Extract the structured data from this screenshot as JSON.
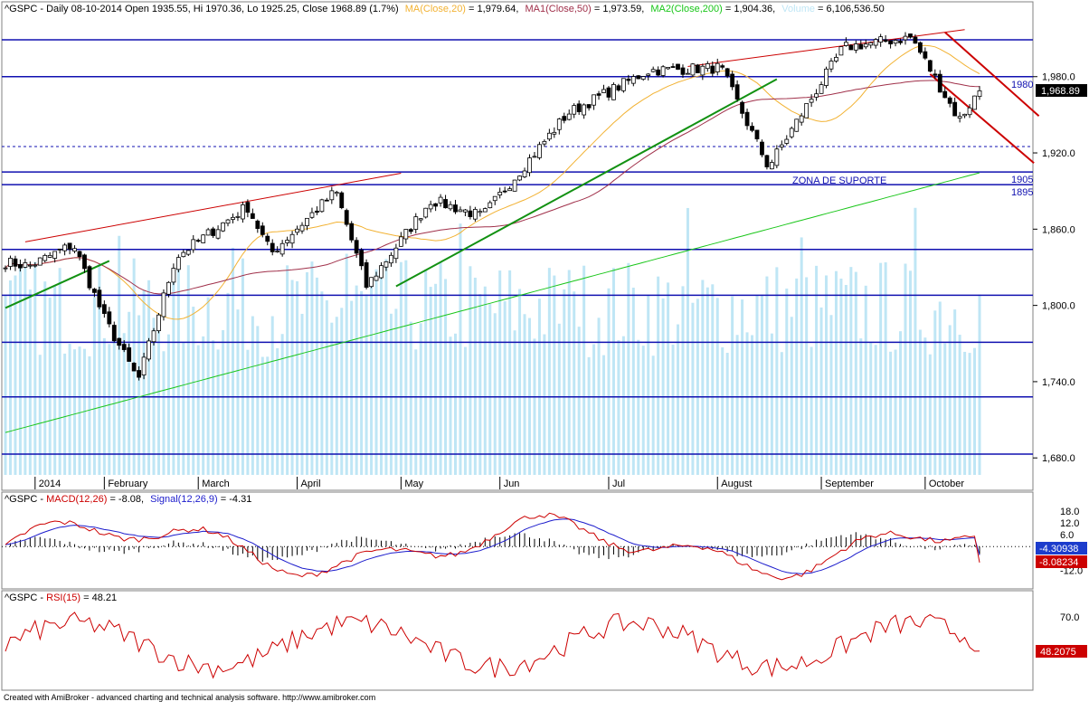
{
  "colors": {
    "price_up": "#000000",
    "price_down": "#000000",
    "ma20": "#f2b233",
    "ma50": "#a0304a",
    "ma200": "#19c619",
    "volume": "#bfe6f5",
    "horizontal_line": "#1010b0",
    "channel_red": "#cc0000",
    "trend_green": "#129112",
    "macd": "#cc0000",
    "signal": "#1c1ccc",
    "rsi": "#cc0000",
    "price_badge_bg": "#000000",
    "macd_badge_bg": "#1c3ccc",
    "signal_badge_bg": "#cc0000",
    "rsi_badge_bg": "#cc0000"
  },
  "header": {
    "symbol_line": "^GSPC - Daily 08-10-2014 Open 1935.55, Hi 1970.36, Lo 1925.25, Close 1968.89 (1.7%)",
    "ma20_label": "MA(Close,20)",
    "ma20_value": " = 1,979.64,",
    "ma50_label": "MA1(Close,50)",
    "ma50_value": " = 1,973.59,",
    "ma200_label": "MA2(Close,200)",
    "ma200_value": " = 1,904.36,",
    "volume_label": "Volume",
    "volume_value": " = 6,106,536.50"
  },
  "macd_header": {
    "prefix": "^GSPC - ",
    "macd_label": "MACD(12,26)",
    "macd_value": " = -8.08,",
    "signal_label": "Signal(12,26,9)",
    "signal_value": " = -4.31"
  },
  "rsi_header": {
    "prefix": "^GSPC - ",
    "rsi_label": "RSI(15)",
    "rsi_value": " = 48.21"
  },
  "price_axis": {
    "ticks": [
      "1,980.0",
      "1,920.0",
      "1,860.0",
      "1,800.0",
      "1,740.0",
      "1,680.0"
    ],
    "tick_values": [
      1980,
      1920,
      1860,
      1800,
      1740,
      1680
    ],
    "last_price": "1,968.89",
    "ylim": [
      1662,
      2012
    ]
  },
  "macd_axis": {
    "ticks": [
      "18.0",
      "12.0",
      "6.0",
      "0.0",
      "-12.0"
    ],
    "tick_values": [
      18,
      12,
      6,
      0,
      -12
    ],
    "signal_badge": "-4.30938",
    "macd_badge": "-8.08234",
    "ylim": [
      -20,
      22
    ]
  },
  "rsi_axis": {
    "ticks": [
      "70.0"
    ],
    "tick_values": [
      70
    ],
    "badge": "48.2075",
    "ylim": [
      25,
      78
    ]
  },
  "months": [
    "2014",
    "February",
    "March",
    "April",
    "May",
    "Jun",
    "Jul",
    "August",
    "September",
    "October"
  ],
  "annotations": {
    "support_zone": "ZONA DE SUPORTE",
    "level_1980": "1980",
    "level_1905": "1905",
    "level_1895": "1895"
  },
  "horizontal_levels": [
    2009,
    1980,
    1905,
    1895,
    1844,
    1808,
    1771,
    1728,
    1683
  ],
  "chart_data": {
    "type": "line",
    "title": "^GSPC - Daily 08-10-2014",
    "x_range": [
      "2013-12-26",
      "2014-10-08"
    ],
    "close_series_key_points": [
      {
        "date": "2013-12-26",
        "close": 1834
      },
      {
        "date": "2014-01-02",
        "close": 1831
      },
      {
        "date": "2014-01-15",
        "close": 1848
      },
      {
        "date": "2014-01-24",
        "close": 1790
      },
      {
        "date": "2014-02-03",
        "close": 1741
      },
      {
        "date": "2014-02-14",
        "close": 1838
      },
      {
        "date": "2014-03-07",
        "close": 1878
      },
      {
        "date": "2014-03-14",
        "close": 1841
      },
      {
        "date": "2014-04-02",
        "close": 1890
      },
      {
        "date": "2014-04-11",
        "close": 1815
      },
      {
        "date": "2014-04-30",
        "close": 1883
      },
      {
        "date": "2014-05-15",
        "close": 1870
      },
      {
        "date": "2014-06-09",
        "close": 1951
      },
      {
        "date": "2014-07-03",
        "close": 1985
      },
      {
        "date": "2014-07-24",
        "close": 1987
      },
      {
        "date": "2014-08-07",
        "close": 1909
      },
      {
        "date": "2014-08-29",
        "close": 2003
      },
      {
        "date": "2014-09-18",
        "close": 2011
      },
      {
        "date": "2014-10-02",
        "close": 1946
      },
      {
        "date": "2014-10-08",
        "close": 1968.89
      }
    ],
    "last_bar": {
      "open": 1935.55,
      "high": 1970.36,
      "low": 1925.25,
      "close": 1968.89,
      "change_pct": 1.7
    },
    "indicators": {
      "ma20": 1979.64,
      "ma50": 1973.59,
      "ma200": 1904.36,
      "volume": 6106536.5,
      "macd": -8.08,
      "signal": -4.31,
      "rsi15": 48.21
    },
    "ylabel": "",
    "grid": false,
    "legend": "header-top-left"
  }
}
